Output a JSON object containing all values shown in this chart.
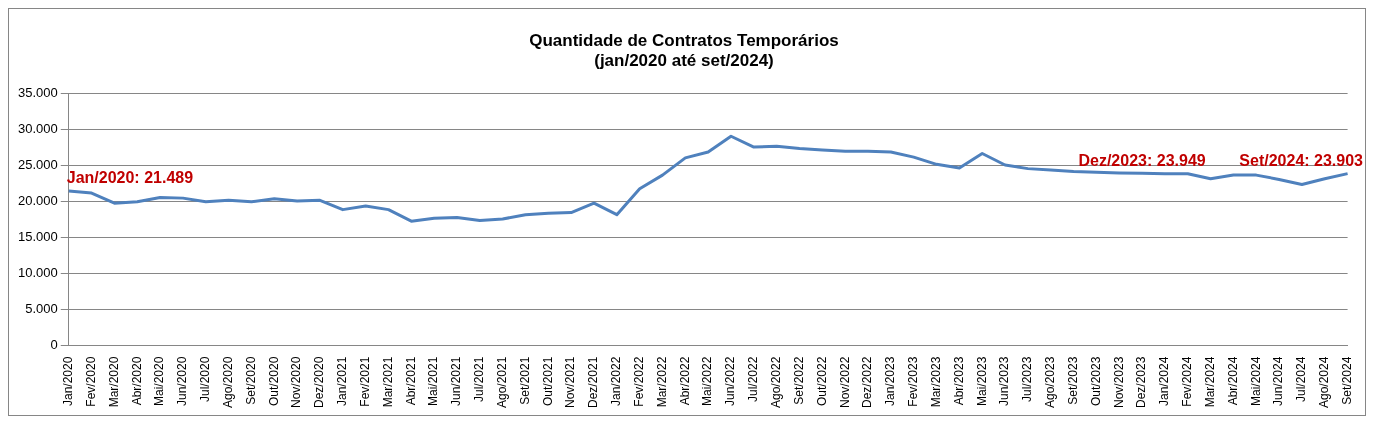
{
  "chart_data": {
    "type": "line",
    "title": "Quantidade de Contratos Temporários\n(jan/2020 até set/2024)",
    "categories": [
      "Jan/2020",
      "Fev/2020",
      "Mar/2020",
      "Abr/2020",
      "Mai/2020",
      "Jun/2020",
      "Jul/2020",
      "Ago/2020",
      "Set/2020",
      "Out/2020",
      "Nov/2020",
      "Dez/2020",
      "Jan/2021",
      "Fev/2021",
      "Mar/2021",
      "Abr/2021",
      "Mai/2021",
      "Jun/2021",
      "Jul/2021",
      "Ago/2021",
      "Set/2021",
      "Out/2021",
      "Nov/2021",
      "Dez/2021",
      "Jan/2022",
      "Fev/2022",
      "Mar/2022",
      "Abr/2022",
      "Mai/2022",
      "Jun/2022",
      "Jul/2022",
      "Ago/2022",
      "Set/2022",
      "Out/2022",
      "Nov/2022",
      "Dez/2022",
      "Jan/2023",
      "Fev/2023",
      "Mar/2023",
      "Abr/2023",
      "Mai/2023",
      "Jun/2023",
      "Jul/2023",
      "Ago/2023",
      "Set/2023",
      "Out/2023",
      "Nov/2023",
      "Dez/2023",
      "Jan/2024",
      "Fev/2024",
      "Mar/2024",
      "Abr/2024",
      "Mai/2024",
      "Jun/2024",
      "Jul/2024",
      "Ago/2024",
      "Set/2024"
    ],
    "series": [
      {
        "color": "#4f81bd",
        "values": [
          21489,
          21200,
          19800,
          20000,
          20600,
          20500,
          20000,
          20200,
          20000,
          20400,
          20100,
          20200,
          18900,
          19400,
          18900,
          17300,
          17700,
          17800,
          17400,
          17600,
          18200,
          18400,
          18500,
          19800,
          18200,
          21800,
          23700,
          26100,
          26900,
          29100,
          27600,
          27700,
          27400,
          27200,
          27000,
          27000,
          26900,
          26200,
          25200,
          24700,
          26700,
          25100,
          24600,
          24400,
          24200,
          24100,
          24000,
          23949,
          23900,
          23900,
          23200,
          23700,
          23700,
          23100,
          22400,
          23200,
          23903
        ]
      }
    ],
    "ylim": [
      0,
      35000
    ],
    "yticks": [
      {
        "value": 0,
        "label": "0"
      },
      {
        "value": 5000,
        "label": "5.000"
      },
      {
        "value": 10000,
        "label": "10.000"
      },
      {
        "value": 15000,
        "label": "15.000"
      },
      {
        "value": 20000,
        "label": "20.000"
      },
      {
        "value": 25000,
        "label": "25.000"
      },
      {
        "value": 30000,
        "label": "30.000"
      },
      {
        "value": 35000,
        "label": "35.000"
      }
    ],
    "grid": "y",
    "legend": false,
    "marker": "none",
    "line_style": "solid",
    "annotations": [
      {
        "text": "Jan/2020: 21.489",
        "x": "Jan/2020",
        "y": 21489
      },
      {
        "text": "Dez/2023: 23.949",
        "x": "Dez/2023",
        "y": 23949
      },
      {
        "text": "Set/2024: 23.903",
        "x": "Set/2024",
        "y": 23903
      }
    ]
  }
}
